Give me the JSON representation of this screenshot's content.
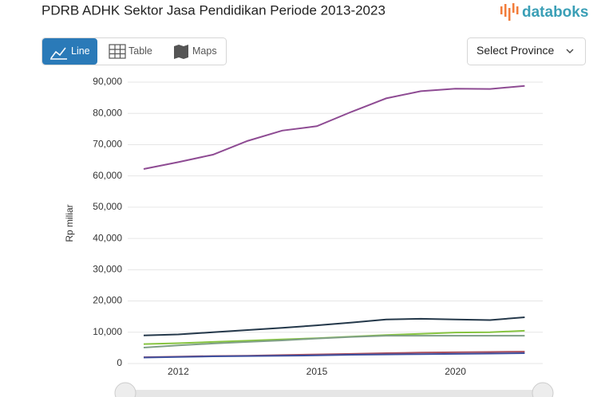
{
  "brand": "databoks",
  "controls": {
    "line": "Line",
    "table": "Table",
    "maps": "Maps",
    "select": "Select Province"
  },
  "chart_data": {
    "type": "line",
    "title": "PDRB ADHK Sektor Jasa Pendidikan Periode 2013-2023",
    "y_label": "Rp miliar",
    "categories": [
      null,
      "2012",
      null,
      null,
      null,
      "2015",
      null,
      null,
      null,
      "2020",
      null,
      null
    ],
    "ylim": [
      0,
      90000
    ],
    "yticks": [
      0,
      {
        "value": 10000,
        "label": "10,000"
      },
      {
        "value": 20000,
        "label": "20,000"
      },
      {
        "value": 30000,
        "label": "30,000"
      },
      {
        "value": 40000,
        "label": "40,000"
      },
      {
        "value": 50000,
        "label": "50,000"
      },
      {
        "value": 60000,
        "label": "60,000"
      },
      {
        "value": 70000,
        "label": "70,000"
      },
      {
        "value": 80000,
        "label": "80,000"
      },
      {
        "value": 90000,
        "label": "90,000"
      }
    ],
    "grid": true,
    "series": [
      {
        "color": "#8e4b93",
        "values": [
          62200,
          64400,
          66800,
          71200,
          74500,
          75900,
          80500,
          84800,
          87100,
          87900,
          87800,
          88800
        ]
      },
      {
        "color": "#24384a",
        "values": [
          9000,
          9300,
          10000,
          10700,
          11400,
          12200,
          13100,
          14100,
          14300,
          14100,
          13900,
          14800
        ]
      },
      {
        "color": "#86c440",
        "values": [
          6200,
          6500,
          6900,
          7300,
          7700,
          8100,
          8600,
          9100,
          9500,
          9900,
          10000,
          10500
        ]
      },
      {
        "color": "#7f9f86",
        "values": [
          5100,
          5800,
          6400,
          6900,
          7400,
          8000,
          8500,
          8900,
          8900,
          8900,
          8900,
          8900
        ]
      },
      {
        "color": "#a9505e",
        "values": [
          2000,
          2200,
          2400,
          2500,
          2700,
          2900,
          3100,
          3300,
          3500,
          3600,
          3700,
          3800
        ]
      },
      {
        "color": "#3d4e9e",
        "values": [
          1900,
          2100,
          2300,
          2400,
          2500,
          2600,
          2800,
          2900,
          3000,
          3100,
          3200,
          3300
        ]
      }
    ]
  }
}
